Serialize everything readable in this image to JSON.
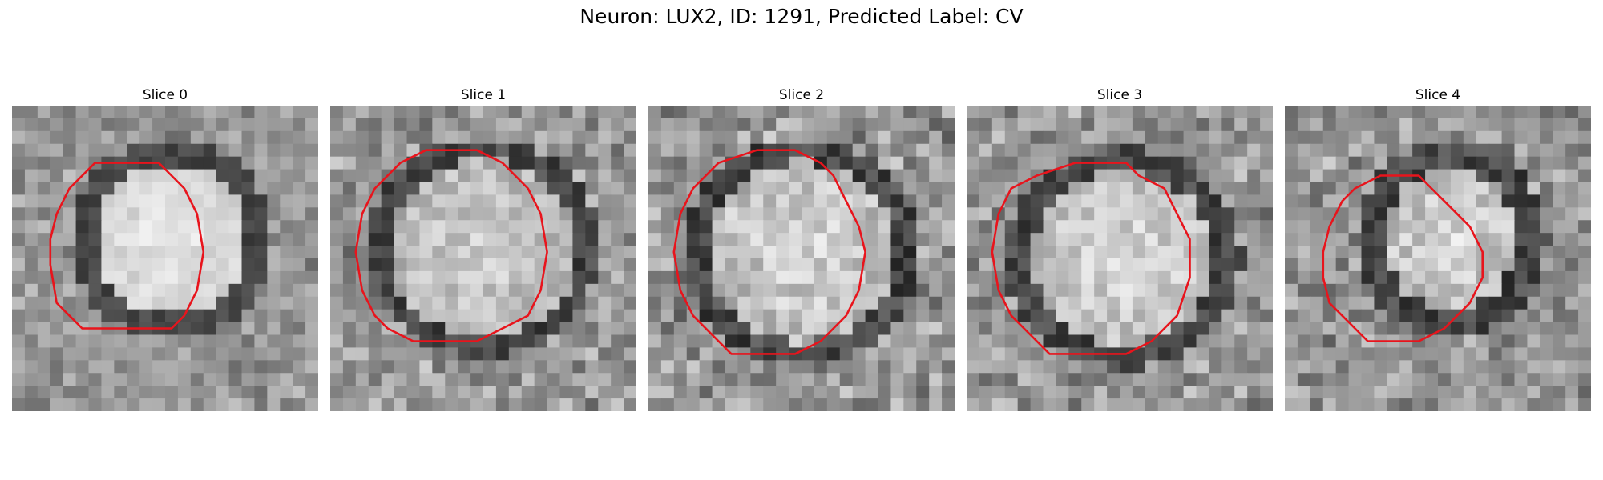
{
  "figure": {
    "title": "Neuron: LUX2, ID: 1291, Predicted Label: CV",
    "outline_color": "#e8141c"
  },
  "panels": [
    {
      "title": "Slice 0",
      "contour": [
        [
          9.5,
          4.5
        ],
        [
          11.5,
          4.5
        ],
        [
          12.5,
          5.5
        ],
        [
          13.5,
          6.5
        ],
        [
          14.5,
          8.5
        ],
        [
          15,
          11.5
        ],
        [
          14.5,
          14.5
        ],
        [
          13.5,
          16.5
        ],
        [
          12.5,
          17.5
        ],
        [
          10.5,
          17.5
        ],
        [
          8.5,
          17.5
        ],
        [
          6.5,
          17.5
        ],
        [
          5.5,
          17.5
        ],
        [
          4.5,
          16.5
        ],
        [
          3.5,
          15.5
        ],
        [
          3,
          12.5
        ],
        [
          3,
          10.5
        ],
        [
          3.5,
          8.5
        ],
        [
          4.5,
          6.5
        ],
        [
          6.5,
          4.5
        ]
      ]
    },
    {
      "title": "Slice 1",
      "contour": [
        [
          9.5,
          3.5
        ],
        [
          11.5,
          3.5
        ],
        [
          13.5,
          4.5
        ],
        [
          14.5,
          5.5
        ],
        [
          15.5,
          6.5
        ],
        [
          16.5,
          8.5
        ],
        [
          17,
          11.5
        ],
        [
          16.5,
          14.5
        ],
        [
          15.5,
          16.5
        ],
        [
          13.5,
          17.5
        ],
        [
          11.5,
          18.5
        ],
        [
          8.5,
          18.5
        ],
        [
          6.5,
          18.5
        ],
        [
          4.5,
          17.5
        ],
        [
          3.5,
          16.5
        ],
        [
          2.5,
          14.5
        ],
        [
          2,
          11.5
        ],
        [
          2.5,
          8.5
        ],
        [
          3.5,
          6.5
        ],
        [
          5.5,
          4.5
        ],
        [
          7.5,
          3.5
        ]
      ]
    },
    {
      "title": "Slice 2",
      "contour": [
        [
          8.5,
          3.5
        ],
        [
          11.5,
          3.5
        ],
        [
          13.5,
          4.5
        ],
        [
          14.5,
          5.5
        ],
        [
          15.5,
          7.5
        ],
        [
          16.5,
          9.5
        ],
        [
          17,
          11.5
        ],
        [
          16.5,
          14.5
        ],
        [
          15.5,
          16.5
        ],
        [
          13.5,
          18.5
        ],
        [
          11.5,
          19.5
        ],
        [
          8.5,
          19.5
        ],
        [
          6.5,
          19.5
        ],
        [
          5.5,
          18.5
        ],
        [
          3.5,
          16.5
        ],
        [
          2.5,
          14.5
        ],
        [
          2,
          11.5
        ],
        [
          2.5,
          8.5
        ],
        [
          3.5,
          6.5
        ],
        [
          5.5,
          4.5
        ]
      ]
    },
    {
      "title": "Slice 3",
      "contour": [
        [
          8.5,
          4.5
        ],
        [
          10.5,
          4.5
        ],
        [
          12.5,
          4.5
        ],
        [
          13.5,
          5.5
        ],
        [
          15.5,
          6.5
        ],
        [
          16.5,
          8.5
        ],
        [
          17.5,
          10.5
        ],
        [
          17.5,
          13.5
        ],
        [
          16.5,
          16.5
        ],
        [
          14.5,
          18.5
        ],
        [
          12.5,
          19.5
        ],
        [
          8.5,
          19.5
        ],
        [
          6.5,
          19.5
        ],
        [
          4.5,
          17.5
        ],
        [
          3.5,
          16.5
        ],
        [
          2.5,
          14.5
        ],
        [
          2,
          11.5
        ],
        [
          2.5,
          8.5
        ],
        [
          3.5,
          6.5
        ],
        [
          5.5,
          5.5
        ]
      ]
    },
    {
      "title": "Slice 4",
      "contour": [
        [
          9.5,
          5.5
        ],
        [
          10.5,
          5.5
        ],
        [
          11.5,
          6.5
        ],
        [
          12.5,
          7.5
        ],
        [
          13.5,
          8.5
        ],
        [
          14.5,
          9.5
        ],
        [
          15.5,
          11.5
        ],
        [
          15.5,
          13.5
        ],
        [
          14.5,
          15.5
        ],
        [
          13.5,
          16.5
        ],
        [
          12.5,
          17.5
        ],
        [
          10.5,
          18.5
        ],
        [
          8.5,
          18.5
        ],
        [
          6.5,
          18.5
        ],
        [
          5.5,
          17.5
        ],
        [
          4.5,
          16.5
        ],
        [
          3.5,
          15.5
        ],
        [
          3,
          13.5
        ],
        [
          3,
          11.5
        ],
        [
          3.5,
          9.5
        ],
        [
          4.5,
          7.5
        ],
        [
          5.5,
          6.5
        ],
        [
          7.5,
          5.5
        ]
      ]
    }
  ]
}
